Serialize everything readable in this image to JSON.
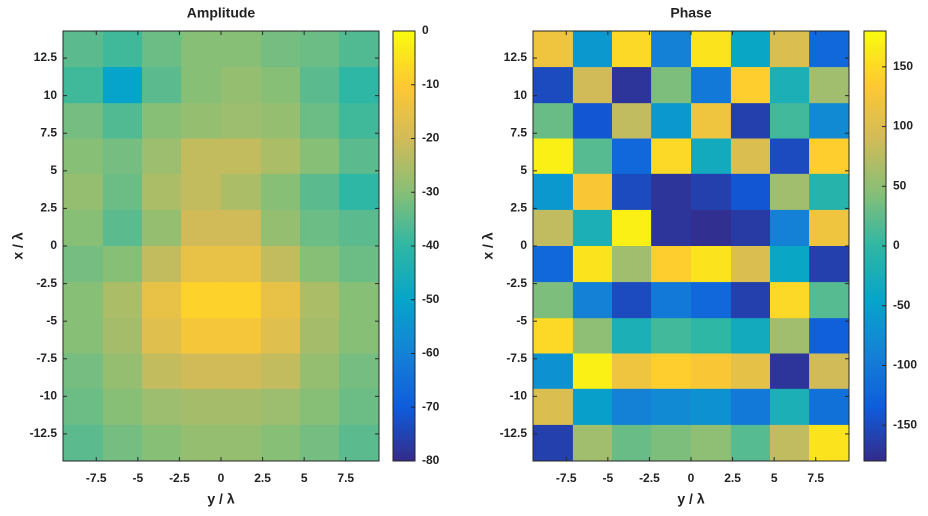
{
  "chart_data": [
    {
      "type": "heatmap",
      "title": "Amplitude",
      "xlabel": "y / λ",
      "ylabel": "x / λ",
      "xlim": [
        -9.5,
        9.5
      ],
      "ylim": [
        -14.3,
        14.3
      ],
      "xticks": [
        -7.5,
        -5,
        -2.5,
        0,
        2.5,
        5,
        7.5
      ],
      "yticks": [
        12.5,
        10,
        7.5,
        5,
        2.5,
        0,
        -2.5,
        -5,
        -7.5,
        -10,
        -12.5
      ],
      "x": [
        -8.3,
        -5.9,
        -3.6,
        -1.2,
        1.2,
        3.6,
        5.9,
        8.3
      ],
      "y": [
        13.1,
        10.7,
        8.3,
        6.0,
        3.6,
        1.2,
        -1.2,
        -3.6,
        -6.0,
        -8.3,
        -10.7,
        -13.1
      ],
      "z": [
        [
          -35,
          -38,
          -33,
          -30,
          -30,
          -32,
          -33,
          -36
        ],
        [
          -38,
          -50,
          -35,
          -30,
          -28,
          -30,
          -35,
          -40
        ],
        [
          -32,
          -36,
          -30,
          -28,
          -27,
          -28,
          -33,
          -38
        ],
        [
          -30,
          -32,
          -27,
          -22,
          -22,
          -25,
          -30,
          -35
        ],
        [
          -28,
          -33,
          -25,
          -22,
          -25,
          -30,
          -35,
          -40
        ],
        [
          -30,
          -35,
          -28,
          -20,
          -20,
          -28,
          -33,
          -35
        ],
        [
          -32,
          -30,
          -22,
          -15,
          -15,
          -22,
          -30,
          -33
        ],
        [
          -30,
          -25,
          -15,
          -8,
          -8,
          -15,
          -25,
          -30
        ],
        [
          -30,
          -26,
          -17,
          -12,
          -12,
          -17,
          -26,
          -30
        ],
        [
          -32,
          -28,
          -22,
          -20,
          -20,
          -22,
          -28,
          -32
        ],
        [
          -33,
          -30,
          -27,
          -26,
          -26,
          -27,
          -30,
          -33
        ],
        [
          -35,
          -32,
          -30,
          -28,
          -28,
          -30,
          -32,
          -35
        ]
      ],
      "clim": [
        -80,
        0
      ],
      "cticks": [
        0,
        -10,
        -20,
        -30,
        -40,
        -50,
        -60,
        -70,
        -80
      ],
      "colormap": [
        "#352a87",
        "#0f5cdd",
        "#1481d6",
        "#06a4ca",
        "#2eb7a4",
        "#87bf77",
        "#d1bb59",
        "#fec832",
        "#f9fb0e"
      ]
    },
    {
      "type": "heatmap",
      "title": "Phase",
      "xlabel": "y / λ",
      "ylabel": "x / λ",
      "xlim": [
        -9.5,
        9.5
      ],
      "ylim": [
        -14.3,
        14.3
      ],
      "xticks": [
        -7.5,
        -5,
        -2.5,
        0,
        2.5,
        5,
        7.5
      ],
      "yticks": [
        12.5,
        10,
        7.5,
        5,
        2.5,
        0,
        -2.5,
        -5,
        -7.5,
        -10,
        -12.5
      ],
      "x": [
        -8.3,
        -5.9,
        -3.6,
        -1.2,
        1.2,
        3.6,
        5.9,
        8.3
      ],
      "y": [
        13.1,
        10.7,
        8.3,
        6.0,
        3.6,
        1.2,
        -1.2,
        -3.6,
        -6.0,
        -8.3,
        -10.7,
        -13.1
      ],
      "z": [
        [
          120,
          -60,
          150,
          -90,
          160,
          -40,
          100,
          -120
        ],
        [
          -150,
          90,
          -170,
          40,
          -100,
          140,
          -20,
          60
        ],
        [
          30,
          -140,
          80,
          -60,
          120,
          -160,
          10,
          -80
        ],
        [
          170,
          20,
          -120,
          150,
          -30,
          100,
          -150,
          140
        ],
        [
          -60,
          130,
          -150,
          -170,
          -160,
          -140,
          60,
          -10
        ],
        [
          80,
          -20,
          170,
          -170,
          -175,
          -165,
          -90,
          120
        ],
        [
          -120,
          160,
          60,
          140,
          160,
          100,
          -40,
          -160
        ],
        [
          40,
          -90,
          -150,
          -100,
          -120,
          -160,
          150,
          20
        ],
        [
          150,
          50,
          -20,
          10,
          0,
          -30,
          60,
          -130
        ],
        [
          -70,
          170,
          120,
          140,
          130,
          110,
          -170,
          90
        ],
        [
          100,
          -50,
          -90,
          -80,
          -70,
          -100,
          -20,
          -110
        ],
        [
          -160,
          60,
          30,
          40,
          50,
          20,
          80,
          160
        ]
      ],
      "clim": [
        -180,
        180
      ],
      "cticks": [
        150,
        100,
        50,
        0,
        -50,
        -100,
        -150
      ],
      "colormap": [
        "#352a87",
        "#0f5cdd",
        "#1481d6",
        "#06a4ca",
        "#2eb7a4",
        "#87bf77",
        "#d1bb59",
        "#fec832",
        "#f9fb0e"
      ]
    }
  ]
}
